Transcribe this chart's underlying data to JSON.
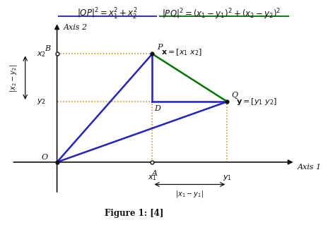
{
  "bg_color": "#ffffff",
  "fig_caption": "Figure 1: [4]",
  "axis1_label": "Axis 1",
  "axis2_label": "Axis 2",
  "O": [
    0.0,
    0.0
  ],
  "P": [
    0.42,
    0.68
  ],
  "Q": [
    0.75,
    0.38
  ],
  "A": [
    0.42,
    0.0
  ],
  "B": [
    0.0,
    0.68
  ],
  "D": [
    0.42,
    0.38
  ],
  "xlim": [
    -0.22,
    1.05
  ],
  "ylim": [
    -0.22,
    0.88
  ],
  "dotted_color": "#cc8800",
  "blue_color": "#2222cc",
  "green_color": "#007700",
  "dark_color": "#111111",
  "underline_blue": "#3333cc",
  "underline_green": "#008800"
}
